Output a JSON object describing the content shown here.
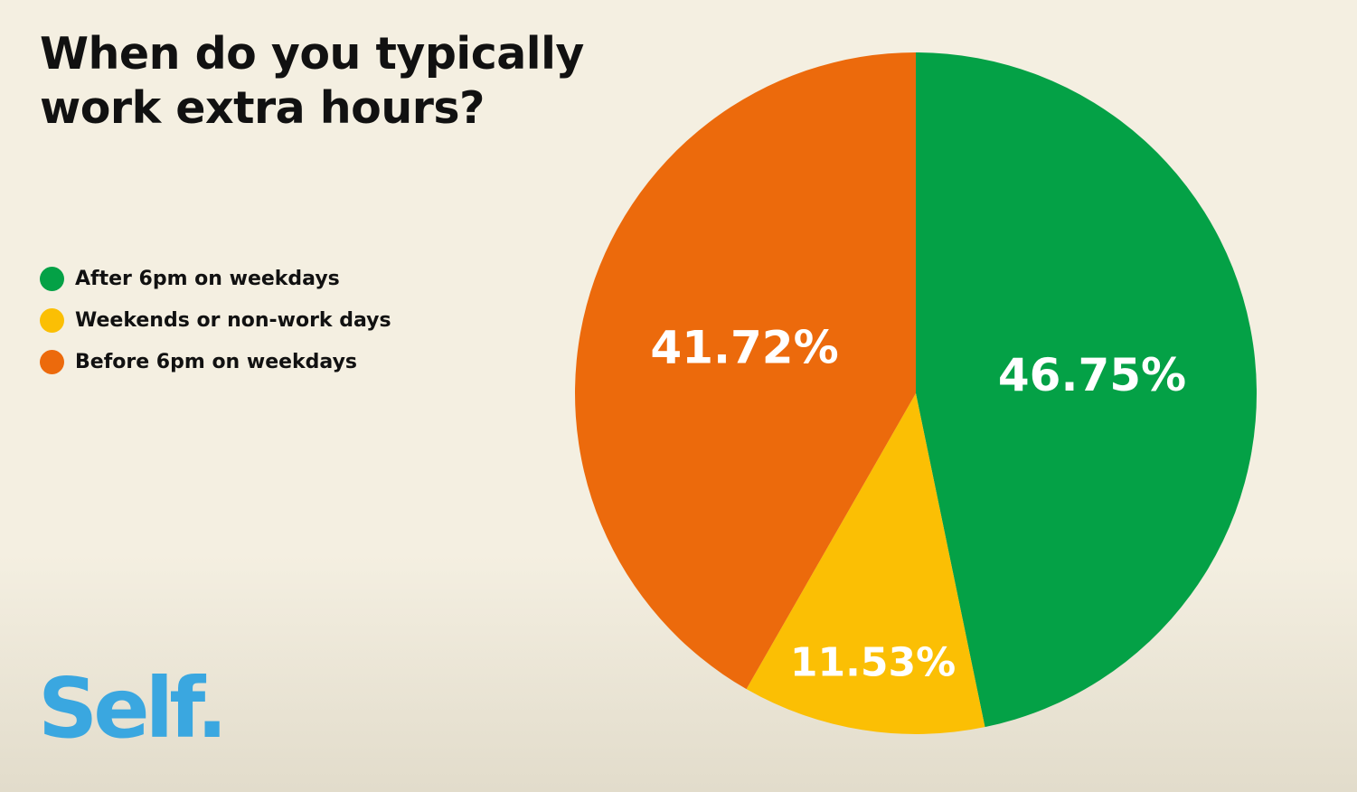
{
  "chart_data": {
    "type": "pie",
    "title": "When do you typically work extra hours?",
    "slices": [
      {
        "label": "After 6pm on weekdays",
        "value": 46.75,
        "display": "46.75%",
        "color": "#04a146"
      },
      {
        "label": "Weekends or non-work days",
        "value": 11.53,
        "display": "11.53%",
        "color": "#fbbf04"
      },
      {
        "label": "Before 6pm on weekdays",
        "value": 41.72,
        "display": "41.72%",
        "color": "#ec6a0c"
      }
    ],
    "legend_position": "left",
    "start": "top",
    "direction": "clockwise"
  },
  "branding": {
    "logo_text": "Self."
  }
}
